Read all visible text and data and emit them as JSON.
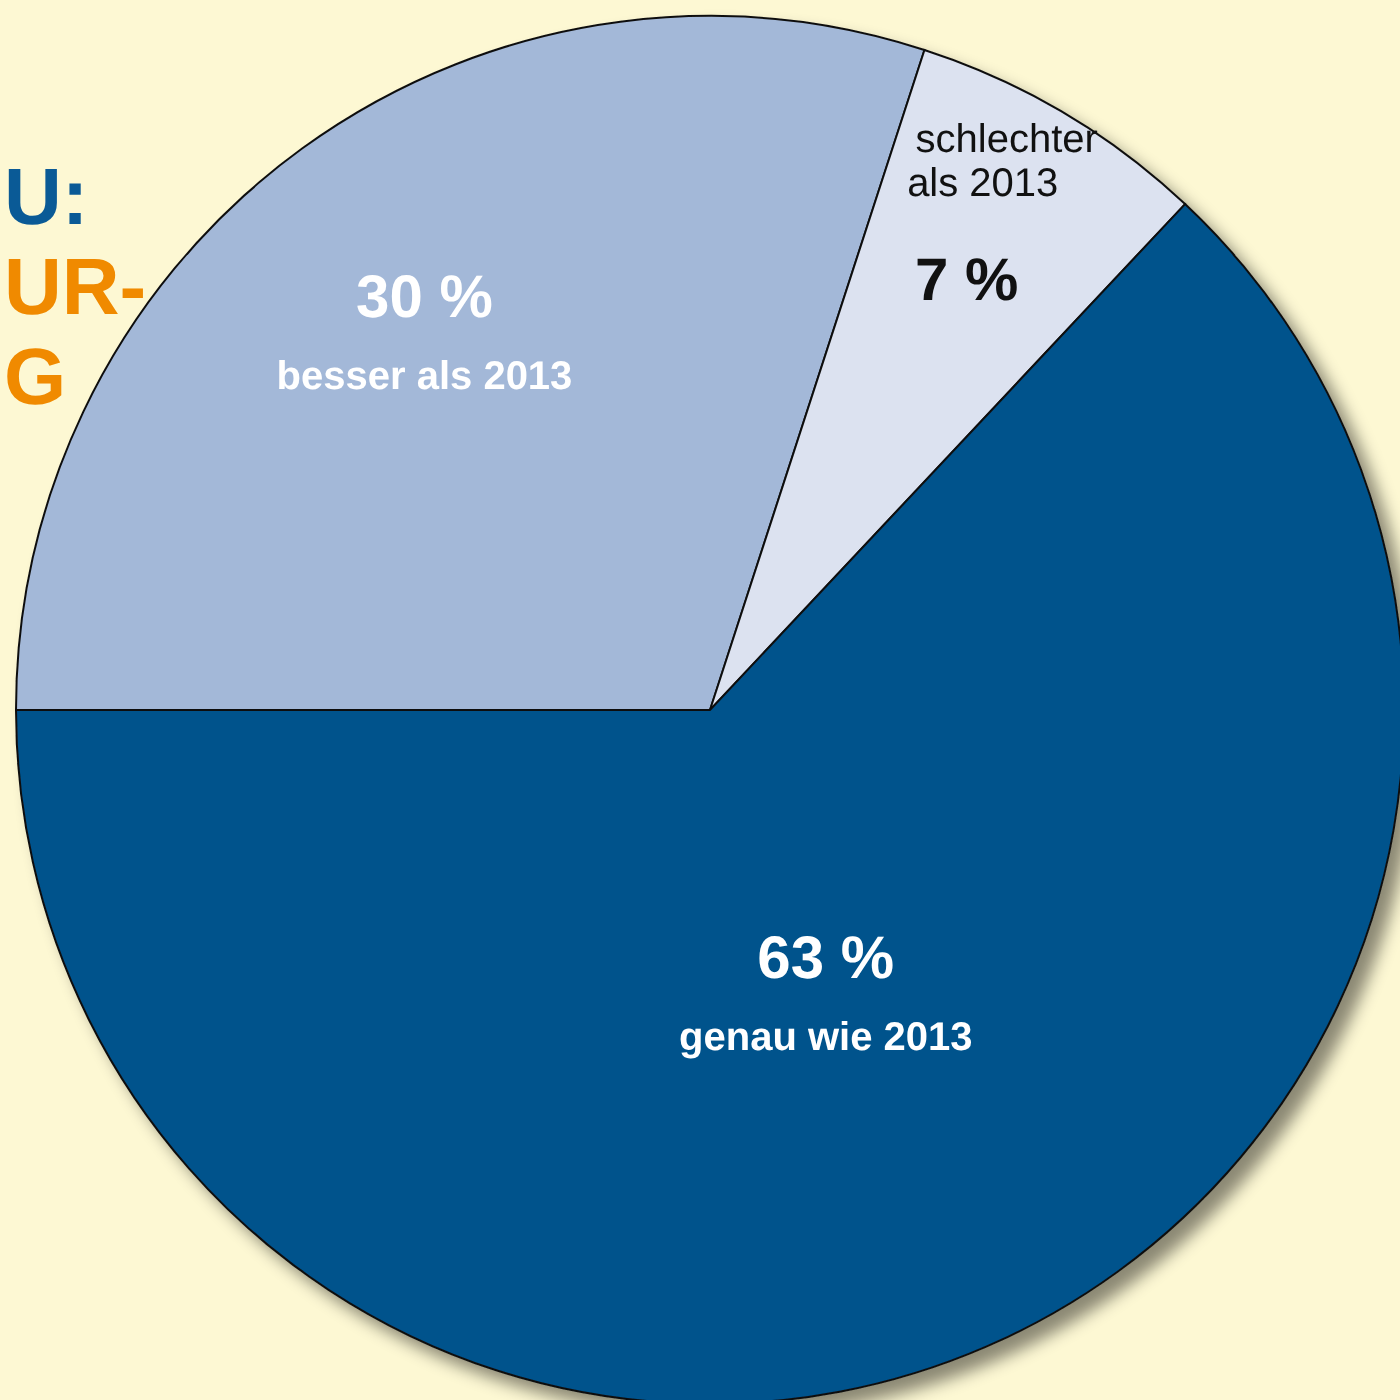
{
  "chart_data": {
    "type": "pie",
    "categories": [
      "besser als 2013",
      "schlechter als 2013",
      "genau wie 2013"
    ],
    "values": [
      30,
      7,
      63
    ],
    "colors": [
      "#a3b8d8",
      "#dce2f0",
      "#00528c"
    ],
    "value_labels": [
      "30 %",
      "7 %",
      "63 %"
    ],
    "annotations": [
      "U:",
      "UR-",
      "G"
    ]
  }
}
